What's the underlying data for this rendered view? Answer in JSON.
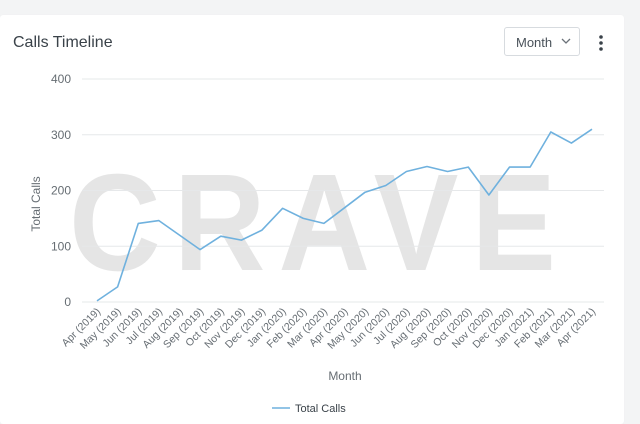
{
  "header": {
    "title": "Calls Timeline",
    "period_selected": "Month"
  },
  "icons": {
    "period_dropdown": "chevron-down-icon",
    "menu": "more-vertical-icon"
  },
  "watermark_text": "CRAVE",
  "colors": {
    "series": "#6fb1de",
    "grid": "#e6e8ea",
    "axis_text": "#666d73",
    "watermark": "#dcdcdc"
  },
  "chart_data": {
    "type": "line",
    "title": "",
    "xlabel": "Month",
    "ylabel": "Total Calls",
    "ylim": [
      0,
      400
    ],
    "yticks": [
      0,
      100,
      200,
      300,
      400
    ],
    "grid": true,
    "legend_position": "bottom-center",
    "categories": [
      "Apr (2019)",
      "May (2019)",
      "Jun (2019)",
      "Jul (2019)",
      "Aug (2019)",
      "Sep (2019)",
      "Oct (2019)",
      "Nov (2019)",
      "Dec (2019)",
      "Jan (2020)",
      "Feb (2020)",
      "Mar (2020)",
      "Apr (2020)",
      "May (2020)",
      "Jun (2020)",
      "Jul (2020)",
      "Aug (2020)",
      "Sep (2020)",
      "Oct (2020)",
      "Nov (2020)",
      "Dec (2020)",
      "Jan (2021)",
      "Feb (2021)",
      "Mar (2021)",
      "Apr (2021)"
    ],
    "series": [
      {
        "name": "Total Calls",
        "values": [
          2,
          27,
          141,
          146,
          120,
          94,
          118,
          111,
          129,
          168,
          150,
          141,
          169,
          197,
          209,
          234,
          243,
          234,
          242,
          192,
          242,
          242,
          305,
          285,
          310
        ]
      }
    ]
  }
}
